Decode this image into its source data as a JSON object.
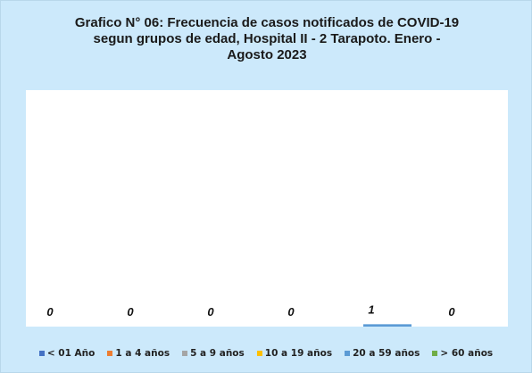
{
  "chart_data": {
    "type": "bar",
    "title": "Grafico N° 06: Frecuencia de casos notificados de COVID-19 segun grupos de edad, Hospital II - 2 Tarapoto. Enero - Agosto 2023",
    "series": [
      {
        "name": "< 01 Año",
        "color": "#4472c4",
        "values": [
          0
        ]
      },
      {
        "name": "1 a 4 años",
        "color": "#ed7d31",
        "values": [
          0
        ]
      },
      {
        "name": "5 a 9 años",
        "color": "#a5a5a5",
        "values": [
          0
        ]
      },
      {
        "name": "10 a 19 años",
        "color": "#ffc000",
        "values": [
          0
        ]
      },
      {
        "name": "20 a 59 años",
        "color": "#5b9bd5",
        "values": [
          1
        ]
      },
      {
        "name": "> 60 años",
        "color": "#70ad47",
        "values": [
          0
        ]
      }
    ],
    "ylim": [
      0,
      100
    ],
    "legend": "bottom"
  }
}
